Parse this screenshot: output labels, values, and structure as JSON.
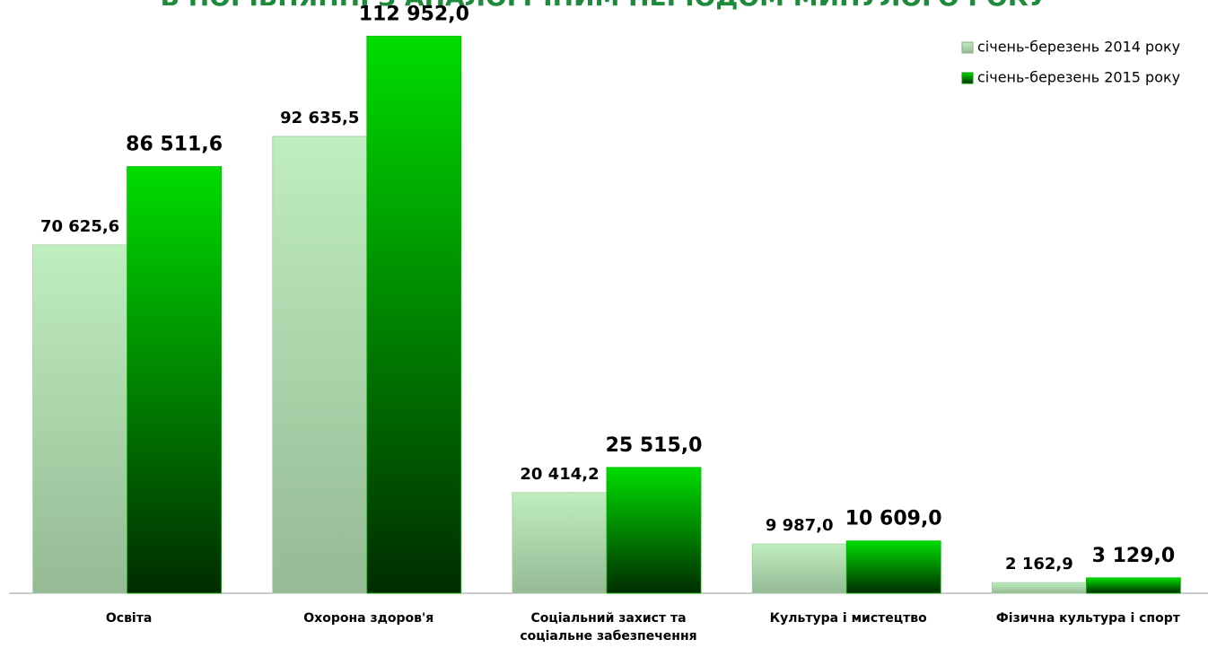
{
  "chart_data": {
    "type": "bar",
    "title": "В ПОРІВНЯННІ З АНАЛОГІЧНИМ ПЕРІОДОМ МИНУЛОГО РОКУ",
    "categories": [
      "Освіта",
      "Охорона здоров'я",
      "Соціальний захист та\nсоціальне забезпечення",
      "Культура і мистецтво",
      "Фізична культура і спорт"
    ],
    "series": [
      {
        "name": "січень-березень 2014 року",
        "color": "#bfeebf",
        "values": [
          70625.6,
          92635.5,
          20414.2,
          9987.0,
          2162.9
        ],
        "value_labels": [
          "70 625,6",
          "92 635,5",
          "20 414,2",
          "9 987,0",
          "2 162,9"
        ]
      },
      {
        "name": "січень-березень 2015 року",
        "color": "#00dd00",
        "values": [
          86511.6,
          112952.0,
          25515.0,
          10609.0,
          3129.0
        ],
        "value_labels": [
          "86 511,6",
          "112 952,0",
          "25 515,0",
          "10 609,0",
          "3 129,0"
        ]
      }
    ],
    "ylim": [
      0,
      113000
    ],
    "legend": "top-right"
  }
}
